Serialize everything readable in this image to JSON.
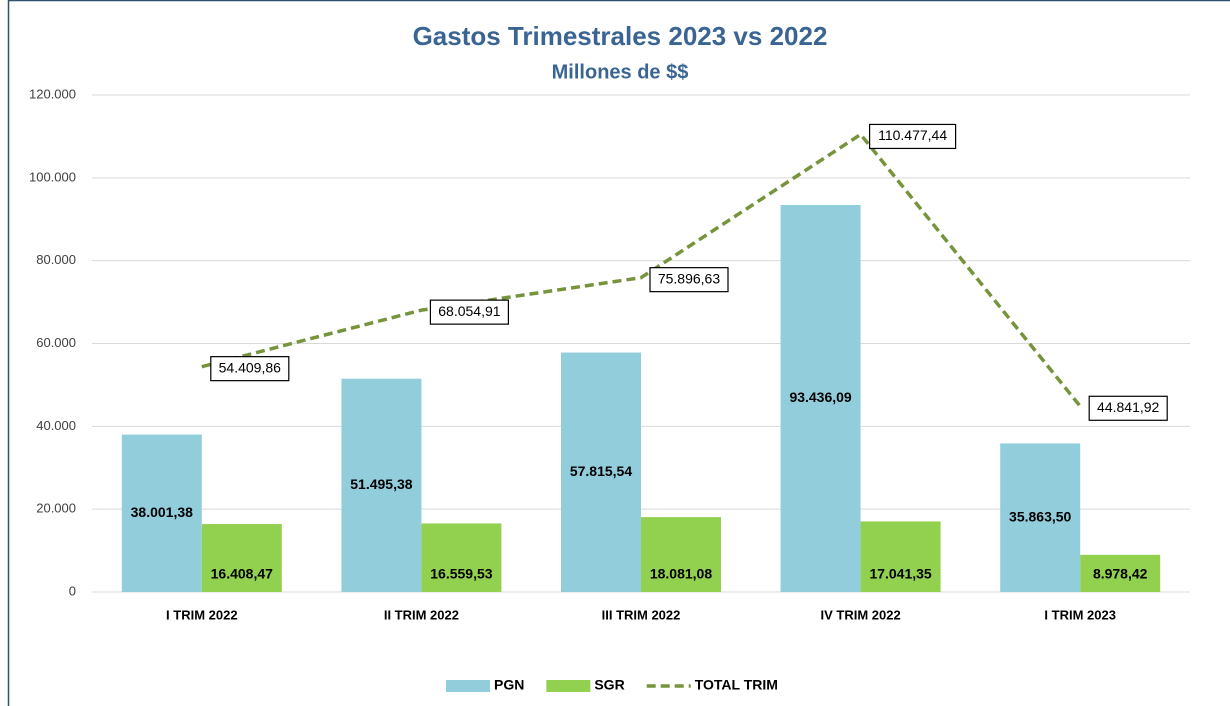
{
  "chart_data": {
    "type": "bar",
    "title": "Gastos Trimestrales 2023 vs 2022",
    "subtitle": "Millones de $$",
    "categories": [
      "I TRIM 2022",
      "II TRIM 2022",
      "III TRIM 2022",
      "IV TRIM 2022",
      "I TRIM 2023"
    ],
    "series": [
      {
        "name": "PGN",
        "type": "bar",
        "color": "#92cddc",
        "values": [
          38001.38,
          51495.38,
          57815.54,
          93436.09,
          35863.5
        ],
        "value_labels": [
          "38.001,38",
          "51.495,38",
          "57.815,54",
          "93.436,09",
          "35.863,50"
        ]
      },
      {
        "name": "SGR",
        "type": "bar",
        "color": "#92d050",
        "values": [
          16408.47,
          16559.53,
          18081.08,
          17041.35,
          8978.42
        ],
        "value_labels": [
          "16.408,47",
          "16.559,53",
          "18.081,08",
          "17.041,35",
          "8.978,42"
        ]
      },
      {
        "name": "TOTAL TRIM",
        "type": "line",
        "color": "#77933c",
        "dashed": true,
        "values": [
          54409.86,
          68054.91,
          75896.63,
          110477.44,
          44841.92
        ],
        "value_labels": [
          "54.409,86",
          "68.054,91",
          "75.896,63",
          "110.477,44",
          "44.841,92"
        ]
      }
    ],
    "ylim": [
      0,
      120000
    ],
    "yticks": [
      0,
      {
        "value": 20000,
        "label": "20.000"
      },
      {
        "value": 40000,
        "label": "40.000"
      },
      {
        "value": 60000,
        "label": "60.000"
      },
      {
        "value": 80000,
        "label": "80.000"
      },
      {
        "value": 100000,
        "label": "100.000"
      },
      {
        "value": 120000,
        "label": "120.000"
      }
    ],
    "grid": true,
    "legend": "bottom"
  }
}
